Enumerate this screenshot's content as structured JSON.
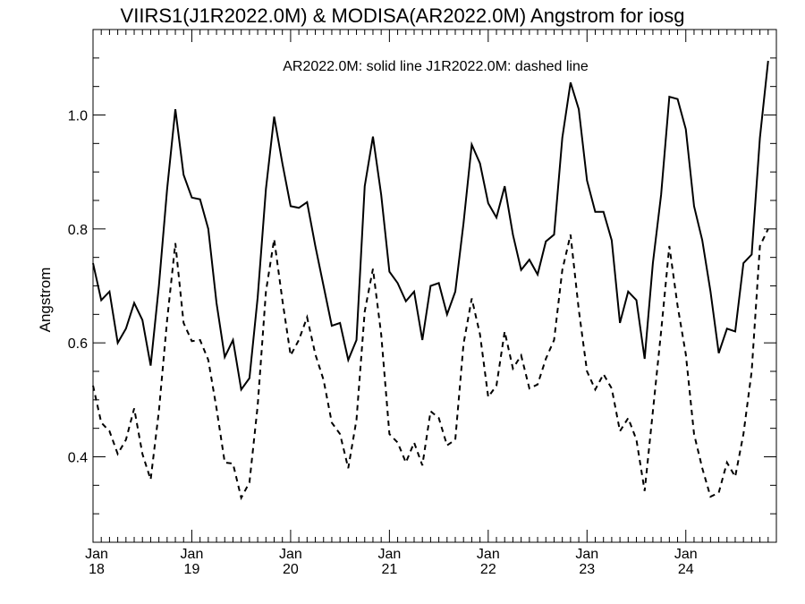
{
  "chart_data": {
    "type": "line",
    "title": "VIIRS1(J1R2022.0M) & MODISA(AR2022.0M)  Angstrom for iosg",
    "ylabel": "Angstrom",
    "xlabel": "",
    "annotation": "AR2022.0M: solid line   J1R2022.0M: dashed line",
    "ylim": [
      0.25,
      1.15
    ],
    "yticks": [
      0.4,
      0.6,
      0.8,
      1.0
    ],
    "ytick_labels": [
      "0.4",
      "0.6",
      "0.8",
      "1.0"
    ],
    "xlim": [
      0,
      83
    ],
    "xticks": [
      {
        "month_index": 0,
        "label1": "Jan",
        "label2": "18"
      },
      {
        "month_index": 12,
        "label1": "Jan",
        "label2": "19"
      },
      {
        "month_index": 24,
        "label1": "Jan",
        "label2": "20"
      },
      {
        "month_index": 36,
        "label1": "Jan",
        "label2": "21"
      },
      {
        "month_index": 48,
        "label1": "Jan",
        "label2": "22"
      },
      {
        "month_index": 60,
        "label1": "Jan",
        "label2": "23"
      },
      {
        "month_index": 72,
        "label1": "Jan",
        "label2": "24"
      }
    ],
    "grid": false,
    "series": [
      {
        "name": "AR2022.0M",
        "style": "solid",
        "color": "#000000",
        "values": [
          0.74,
          0.675,
          0.69,
          0.6,
          0.625,
          0.67,
          0.64,
          0.56,
          0.7,
          0.87,
          1.01,
          0.895,
          0.855,
          0.852,
          0.8,
          0.67,
          0.575,
          0.605,
          0.518,
          0.538,
          0.68,
          0.87,
          0.997,
          0.915,
          0.84,
          0.837,
          0.847,
          0.77,
          0.7,
          0.63,
          0.635,
          0.57,
          0.605,
          0.875,
          0.962,
          0.86,
          0.725,
          0.705,
          0.673,
          0.69,
          0.605,
          0.7,
          0.705,
          0.65,
          0.69,
          0.81,
          0.948,
          0.915,
          0.845,
          0.82,
          0.875,
          0.79,
          0.728,
          0.746,
          0.72,
          0.778,
          0.79,
          0.96,
          1.057,
          1.01,
          0.885,
          0.83,
          0.83,
          0.78,
          0.635,
          0.69,
          0.675,
          0.572,
          0.74,
          0.86,
          1.032,
          1.028,
          0.975,
          0.84,
          0.78,
          0.69,
          0.582,
          0.625,
          0.62,
          0.74,
          0.755,
          0.96,
          1.095
        ]
      },
      {
        "name": "J1R2022.0M",
        "style": "dashed",
        "color": "#000000",
        "values": [
          0.525,
          0.46,
          0.445,
          0.405,
          0.43,
          0.485,
          0.405,
          0.36,
          0.48,
          0.64,
          0.775,
          0.635,
          0.603,
          0.605,
          0.57,
          0.485,
          0.39,
          0.388,
          0.328,
          0.355,
          0.49,
          0.69,
          0.782,
          0.675,
          0.578,
          0.605,
          0.645,
          0.58,
          0.535,
          0.46,
          0.44,
          0.38,
          0.465,
          0.655,
          0.73,
          0.615,
          0.44,
          0.425,
          0.39,
          0.425,
          0.385,
          0.48,
          0.468,
          0.42,
          0.43,
          0.598,
          0.678,
          0.615,
          0.505,
          0.525,
          0.62,
          0.555,
          0.578,
          0.52,
          0.527,
          0.572,
          0.605,
          0.728,
          0.79,
          0.658,
          0.55,
          0.518,
          0.545,
          0.52,
          0.445,
          0.468,
          0.43,
          0.34,
          0.48,
          0.62,
          0.77,
          0.665,
          0.58,
          0.44,
          0.38,
          0.33,
          0.337,
          0.39,
          0.365,
          0.44,
          0.55,
          0.77,
          0.8
        ]
      }
    ]
  }
}
